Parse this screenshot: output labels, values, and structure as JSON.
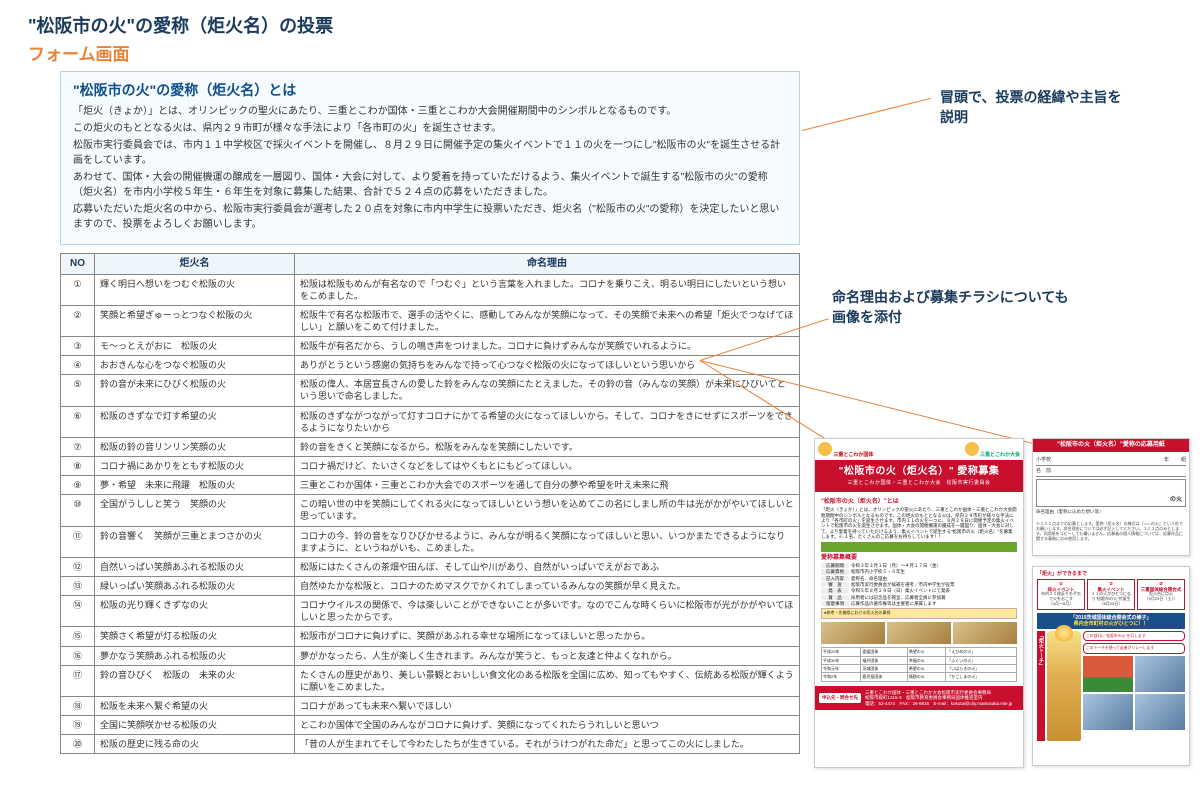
{
  "colors": {
    "title": "#1a3a5c",
    "subtitle": "#e8833a",
    "intro_border": "#b8d4e8",
    "intro_bg": "#f5fbff",
    "intro_heading": "#0d4f8b",
    "table_border": "#888888",
    "table_header_bg": "#eef5fb",
    "connector": "#e8833a",
    "flyer_red": "#c8102e",
    "flyer_green": "#6aa62e",
    "flyer_blue": "#1b4f8b",
    "flyer_yellow": "#ffe89a"
  },
  "page_title": "\"松阪市の火\"の愛称（炬火名）の投票",
  "subtitle": "フォーム画面",
  "intro": {
    "heading": "\"松阪市の火\"の愛称（炬火名）とは",
    "p1": "「炬火（きょか）」とは、オリンピックの聖火にあたり、三重とこわか国体・三重とこわか大会開催期間中のシンボルとなるものです。",
    "p2": "この炬火のもととなる火は、県内２９市町が様々な手法により「各市町の火」を誕生させます。",
    "p3": "松阪市実行委員会では、市内１１中学校区で採火イベントを開催し、８月２９日に開催予定の集火イベントで１１の火を一つにし\"松阪市の火\"を誕生させる計画をしています。",
    "p4": "あわせて、国体・大会の開催機運の醸成を一層図り、国体・大会に対して、より愛着を持っていただけるよう、集火イベントで誕生する\"松阪市の火\"の愛称（炬火名）を市内小学校５年生・６年生を対象に募集した結果、合計で５２４点の応募をいただきました。",
    "p5": "応募いただいた炬火名の中から、松阪市実行委員会が選考した２０点を対象に市内中学生に投票いただき、炬火名（\"松阪市の火\"の愛称）を決定したいと思いますので、投票をよろしくお願いします。"
  },
  "annotations": {
    "a1_l1": "冒頭で、投票の経緯や主旨を",
    "a1_l2": "説明",
    "a2_l1": "命名理由および募集チラシについても",
    "a2_l2": "画像を添付"
  },
  "table": {
    "headers": {
      "no": "NO",
      "name": "炬火名",
      "reason": "命名理由"
    },
    "rows": [
      {
        "no": "①",
        "name": "輝く明日へ想いをつむぐ松阪の火",
        "reason": "松阪は松阪もめんが有名なので「つむぐ」という言葉を入れました。コロナを乗りこえ、明るい明日にしたいという想いをこめました。"
      },
      {
        "no": "②",
        "name": "笑顔と希望ぎゅーっとつなぐ松阪の火",
        "reason": "松阪牛で有名な松阪市で、選手の活やくに、感動してみんなが笑顔になって、その笑顔で未来への希望「炬火でつなげてほしい」と願いをこめて付けました。"
      },
      {
        "no": "③",
        "name": "モ～っとえがおに　松阪の火",
        "reason": "松阪牛が有名だから、うしの鳴き声をつけました。コロナに負けずみんなが笑顔でいれるように。"
      },
      {
        "no": "④",
        "name": "おおきんな心をつなぐ松阪の火",
        "reason": "ありがとうという感謝の気持ちをみんなで持って心つなぐ松阪の火になってほしいという思いから"
      },
      {
        "no": "⑤",
        "name": "鈴の音が未来にひびく松阪の火",
        "reason": "松阪の偉人、本居宣長さんの愛した鈴をみんなの笑顔にたとえました。その鈴の音（みんなの笑顔）が未来にひびいてという思いで命名しました。"
      },
      {
        "no": "⑥",
        "name": "松阪のきずなで灯す希望の火",
        "reason": "松阪のきずながつながって灯すコロナにかてる希望の火になってほしいから。そして、コロナをきにせずにスポーツをできるようになりたいから"
      },
      {
        "no": "⑦",
        "name": "松阪の鈴の音リンリン笑顔の火",
        "reason": "鈴の音をきくと笑顔になるから。松阪をみんなを笑顔にしたいです。"
      },
      {
        "no": "⑧",
        "name": "コロナ禍にあかりをともす松阪の火",
        "reason": "コロナ禍だけど、たいさくなどをしてはやくもとにもどってほしい。"
      },
      {
        "no": "⑨",
        "name": "夢・希望　未来に飛躍　松阪の火",
        "reason": "三重とこわか国体・三重とこわか大会でのスポーツを通して自分の夢や希望を叶え未来に飛"
      },
      {
        "no": "⑩",
        "name": "全国がうししと笑う　笑顔の火",
        "reason": "この暗い世の中を笑顔にしてくれる火になってほしいという想いを込めてこの名にしまし所の牛は光がかがやいてほしいと思っています。"
      },
      {
        "no": "⑪",
        "name": "鈴の音響く　笑顔が三重とまつさかの火",
        "reason": "コロナの今、鈴の音をなりひびかせるように、みんなが明るく笑顔になってほしいと思い、いつかまたできるようになりますように、というねがいも、こめました。"
      },
      {
        "no": "⑫",
        "name": "自然いっぱい笑顔あふれる松阪の火",
        "reason": "松阪にはたくさんの茶畑や田んぼ、そして山や川があり、自然がいっぱいでえがおであふ"
      },
      {
        "no": "⑬",
        "name": "緑いっぱい笑顔あふれる松阪の火",
        "reason": "自然ゆたかな松阪と、コロナのためマスクでかくれてしまっているみんなの笑顔が早く見えた。"
      },
      {
        "no": "⑭",
        "name": "松阪の光り輝くきずなの火",
        "reason": "コロナウイルスの関係で、今は楽しいことができないことが多いです。なのでこんな時くらいに松阪市が光がかがやいてほしいと思ったからです。"
      },
      {
        "no": "⑮",
        "name": "笑顔さく希望が灯る松阪の火",
        "reason": "松阪市がコロナに負けずに、笑顔があふれる幸せな場所になってほしいと思ったから。"
      },
      {
        "no": "⑯",
        "name": "夢かなう笑顔あふれる松阪の火",
        "reason": "夢がかなったら、人生が楽しく生きれます。みんなが笑うと、もっと友達と仲よくなれから。"
      },
      {
        "no": "⑰",
        "name": "鈴の音ひびく　松阪の　未来の火",
        "reason": "たくさんの歴史があり、美しい景観とおいしい食文化のある松阪を全国に広め、知ってもやすく、伝統ある松阪が輝くように願いをこめました。"
      },
      {
        "no": "⑱",
        "name": "松阪を未来へ繋ぐ希望の火",
        "reason": "コロナがあっても未来へ繋いでほしい"
      },
      {
        "no": "⑲",
        "name": "全国に笑顔咲かせる松阪の火",
        "reason": "とこわか国体で全国のみんながコロナに負けず、笑顔になってくれたらうれしいと思いつ"
      },
      {
        "no": "⑳",
        "name": "松阪の歴史に残る命の火",
        "reason": "「昔の人が生まれてそして今わたしたちが生きている。それがうけつがれた命だ」と思ってこの火にしました。"
      }
    ]
  },
  "flyer_left": {
    "head_left": "三重とこわか国体",
    "head_right": "三重とこわか大会",
    "banner_main": "\"松阪市の火（炬火名）\" 愛称募集",
    "banner_sub": "三重とこわか国体・三重とこわか大会　松阪市実行委員会",
    "sec1_title": "\"松阪市の火（炬火名）\"とは",
    "sec1_body": "「炬火（きょか）」とは、オリンピックの聖火にあたり、三重とこわか国体・三重とこわか大会開催期間中のシンボルとなるものです。この炬火のもととなる火は、県内２９市町が様々な手法により「各市町の火」を誕生させます。市内１１の火を一つに、８月２９日に開催予定の集火イベントで松阪市の火を誕生させます。国体・大会の開催機運の醸成を一層図り、国体・大会に対して、より愛着を持っていただけるよう、集火イベントで誕生する\"松阪市の火（炬火名）\"を募集します。※ １名、たくさんのご応募をお待ちしています！！",
    "sec2_title": "愛称募集概要",
    "info_rows": [
      {
        "lab": "応募期間",
        "val": "令和３年３月１日（月）～４月１７日（金）"
      },
      {
        "lab": "応募資格",
        "val": "松阪市内小学校５・６年生"
      },
      {
        "lab": "記入内容",
        "val": "愛称名、命名理由"
      },
      {
        "lab": "審　査",
        "val": "松阪市実行委員会が候補を選考／市内中学生が投票"
      },
      {
        "lab": "発　表",
        "val": "令和３年８月２９日（日）集火イベントにて発表"
      },
      {
        "lab": "賞　品",
        "val": "採用者には記念品を贈呈、応募者全員に参加賞"
      },
      {
        "lab": "留意事項",
        "val": "応募作品の著作権等は主催者に帰属します"
      }
    ],
    "sec3_title": "●参考・先催県における炬火名の事例",
    "ex_rows": [
      [
        "平成29年",
        "愛媛国体",
        "希望の火",
        "「えひめの火」"
      ],
      [
        "平成30年",
        "福井国体",
        "幸福の火",
        "「ふくいの火」"
      ],
      [
        "令和元年",
        "茨城国体",
        "希望の火",
        "「いばらきの火」"
      ],
      [
        "令和2年",
        "鹿児島国体",
        "情熱の火",
        "「かごしまの火」"
      ]
    ],
    "footer_btn": "申込先・問合せ先",
    "footer_text1": "三重とこわか国体・三重とこわか大会松阪市実行委員会事務局",
    "footer_text2": "松阪市殿町1315-3　松阪市教育委員会事務局国体推進室内",
    "footer_text3": "電話：53-4474　FAX：26-9816　E-mail：kokutai@city.matsusaka.mie.jp"
  },
  "flyer_form": {
    "head": "\"松阪市の火（炬火名）\"愛称の応募用紙",
    "row_school": "小学校",
    "row_year": "年",
    "row_class": "組",
    "row_name": "名　前",
    "suffix": "の火",
    "reason_lab": "命名理由（愛称に込めた想い等）",
    "note": "※１人１点までの応募とします。愛称（炬火名）の様式は『○○○の火』という形でお願いします。命名理由については必ず記入してください。１人１点のみとします。同用紙をコピーしても構いません。応募者の個人情報については、応募作品に関する事務にのみ使用します。"
  },
  "flyer_diagram": {
    "step_label": "「炬火」ができるまで",
    "steps": [
      {
        "num": "①",
        "title": "採火イベント",
        "body": "市内１１校区それぞれで火をおこす",
        "date": "（4月～8月）"
      },
      {
        "num": "②",
        "title": "集火イベント",
        "body": "１１の火がひとつになり\"松阪市の火\"が誕生",
        "date": "（8月29日）"
      },
      {
        "num": "③",
        "title": "三重国体総合開会式",
        "body": "炬火台に点火",
        "date": "（9月25日（土））"
      }
    ],
    "banner_pre": "三重とこわか国体・三重とこわか大会の",
    "banner_main": "「2019茨城国体総合開会式の様子」",
    "banner_em": "県内全市町村の火がひとつに！！",
    "torch_lab": "「炬火トーチ」",
    "callout1": "この部分に\"松阪市の火\"を灯します",
    "callout2": "このトーチを使って走者がリレーします"
  }
}
